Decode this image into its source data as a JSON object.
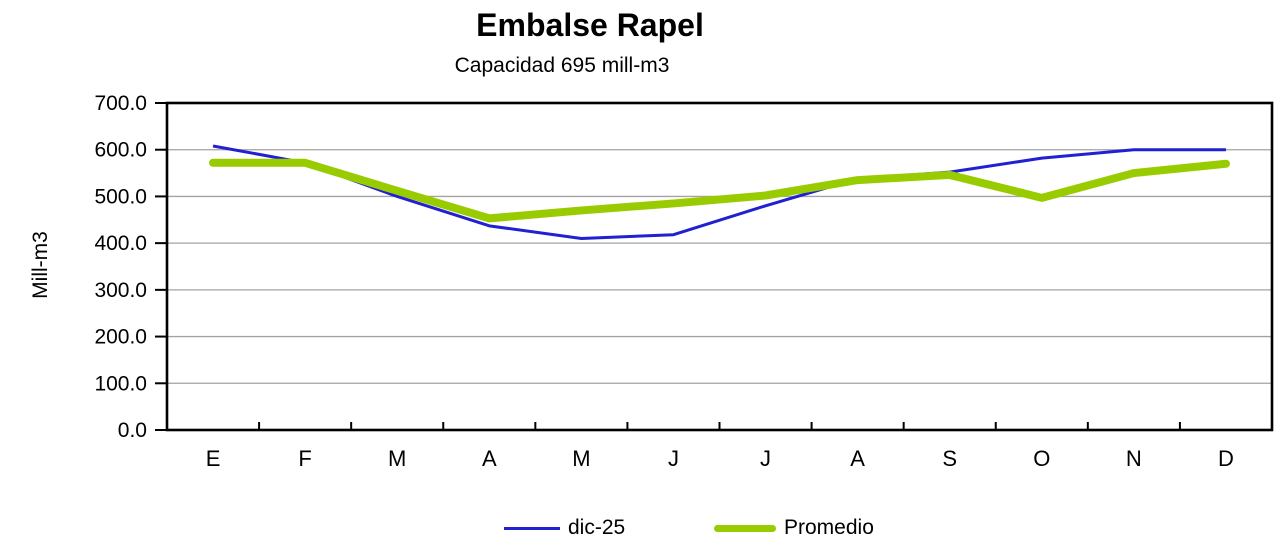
{
  "header": {
    "title": "Embalse Rapel",
    "subtitle": "Capacidad 695 mill-m3"
  },
  "chart_data": {
    "type": "line",
    "title": "Embalse Rapel",
    "subtitle": "Capacidad 695 mill-m3",
    "ylabel": "Mill-m3",
    "xlabel": "",
    "categories": [
      "E",
      "F",
      "M",
      "A",
      "M",
      "J",
      "J",
      "A",
      "S",
      "O",
      "N",
      "D"
    ],
    "series": [
      {
        "name": "dic-25",
        "color": "#2121D1",
        "stroke_width": 3,
        "linecap": "butt",
        "values": [
          608,
          572,
          500,
          437,
          410,
          418,
          480,
          538,
          552,
          582,
          600,
          600
        ]
      },
      {
        "name": "Promedio",
        "color": "#99CC00",
        "stroke_width": 8,
        "linecap": "round",
        "values": [
          572,
          572,
          512,
          453,
          470,
          485,
          502,
          535,
          546,
          497,
          550,
          570
        ]
      }
    ],
    "ylim": [
      0,
      700
    ],
    "ytick_step": 100,
    "yticks": [
      "0.0",
      "100.0",
      "200.0",
      "300.0",
      "400.0",
      "500.0",
      "600.0",
      "700.0"
    ],
    "grid": true,
    "gridline_color": "#A3A3A3",
    "axis_color": "#000000",
    "plot_background": "#FFFFFF",
    "legend_position": "bottom"
  },
  "legend": {
    "items": [
      {
        "label": "dic-25",
        "color": "#2121D1",
        "thickness": 3,
        "width": 56,
        "rounded": false
      },
      {
        "label": "Promedio",
        "color": "#99CC00",
        "thickness": 7,
        "width": 62,
        "rounded": true
      }
    ]
  }
}
